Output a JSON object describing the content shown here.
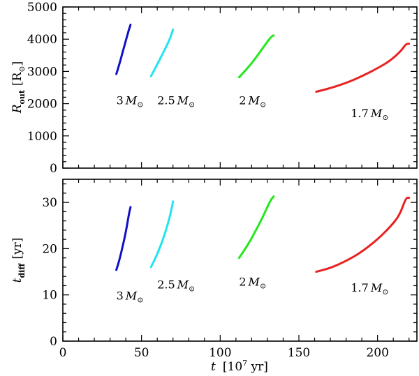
{
  "chart_data": [
    {
      "type": "line",
      "panel": "top",
      "xlabel_symbol": "t",
      "xlabel_unit_open": "[10",
      "xlabel_unit_exp": "7",
      "xlabel_unit_close": " yr]",
      "ylabel_symbol": "R",
      "ylabel_sub": "out",
      "ylabel_unit_open": "[R",
      "ylabel_unit_sub": "⊙",
      "ylabel_unit_close": "]",
      "xlim": [
        0,
        225
      ],
      "ylim": [
        0,
        5000
      ],
      "xticks": [
        0,
        50,
        100,
        150,
        200
      ],
      "yticks": [
        0,
        1000,
        2000,
        3000,
        4000,
        5000
      ],
      "ytick_labels": [
        "0",
        "1000",
        "2000",
        "3000",
        "4000",
        "5000"
      ],
      "series": [
        {
          "name": "3 M⊙",
          "color": "#1010c8",
          "x": [
            34,
            36,
            38,
            40,
            42,
            43
          ],
          "y": [
            2920,
            3240,
            3600,
            3950,
            4300,
            4450
          ]
        },
        {
          "name": "2.5 M⊙",
          "color": "#22e4f0",
          "x": [
            56,
            60,
            64,
            68,
            70
          ],
          "y": [
            2850,
            3220,
            3600,
            4000,
            4300
          ]
        },
        {
          "name": "2 M⊙",
          "color": "#22e81c",
          "x": [
            112,
            117,
            122,
            127,
            132,
            134
          ],
          "y": [
            2820,
            3080,
            3380,
            3720,
            4060,
            4120
          ]
        },
        {
          "name": "1.7 M⊙",
          "color": "#e82222",
          "x": [
            161,
            170,
            180,
            190,
            200,
            208,
            215,
            218,
            220
          ],
          "y": [
            2370,
            2480,
            2640,
            2850,
            3100,
            3330,
            3640,
            3850,
            3860
          ]
        }
      ],
      "labels": [
        {
          "num": "3",
          "sym": "M",
          "sub": "⊙",
          "x": 34,
          "y": 1980
        },
        {
          "num": "2.5",
          "sym": "M",
          "sub": "⊙",
          "x": 60,
          "y": 1980
        },
        {
          "num": "2",
          "sym": "M",
          "sub": "⊙",
          "x": 112,
          "y": 1980
        },
        {
          "num": "1.7",
          "sym": "M",
          "sub": "⊙",
          "x": 183,
          "y": 1580
        }
      ]
    },
    {
      "type": "line",
      "panel": "bottom",
      "xlabel_symbol": "t",
      "xlabel_unit_open": "[10",
      "xlabel_unit_exp": "7",
      "xlabel_unit_close": " yr]",
      "ylabel_symbol": "t",
      "ylabel_sub": "diff",
      "ylabel_unit": "[yr]",
      "xlim": [
        0,
        225
      ],
      "ylim": [
        0,
        35
      ],
      "xticks": [
        0,
        50,
        100,
        150,
        200
      ],
      "xtick_labels": [
        "0",
        "50",
        "100",
        "150",
        "200"
      ],
      "yticks": [
        0,
        10,
        20,
        30
      ],
      "ytick_labels": [
        "0",
        "10",
        "20",
        "30"
      ],
      "series": [
        {
          "name": "3 M⊙",
          "color": "#1010c8",
          "x": [
            34,
            36,
            38,
            40,
            42,
            43
          ],
          "y": [
            15.4,
            17.6,
            20.5,
            23.5,
            27.5,
            29.0
          ]
        },
        {
          "name": "2.5 M⊙",
          "color": "#22e4f0",
          "x": [
            56,
            60,
            64,
            68,
            70
          ],
          "y": [
            16.0,
            18.8,
            22.3,
            26.8,
            30.2
          ]
        },
        {
          "name": "2 M⊙",
          "color": "#22e81c",
          "x": [
            112,
            117,
            122,
            127,
            132,
            134
          ],
          "y": [
            18.0,
            20.5,
            23.5,
            26.8,
            30.5,
            31.3
          ]
        },
        {
          "name": "1.7 M⊙",
          "color": "#e82222",
          "x": [
            161,
            170,
            180,
            190,
            200,
            208,
            214,
            218,
            220
          ],
          "y": [
            15.0,
            15.8,
            17.3,
            19.3,
            22.0,
            24.7,
            27.2,
            31.0,
            31.0
          ]
        }
      ],
      "labels": [
        {
          "num": "3",
          "sym": "M",
          "sub": "⊙",
          "x": 34,
          "y": 9.0
        },
        {
          "num": "2.5",
          "sym": "M",
          "sub": "⊙",
          "x": 60,
          "y": 11.4
        },
        {
          "num": "2",
          "sym": "M",
          "sub": "⊙",
          "x": 112,
          "y": 12.0
        },
        {
          "num": "1.7",
          "sym": "M",
          "sub": "⊙",
          "x": 183,
          "y": 10.7
        }
      ]
    }
  ]
}
